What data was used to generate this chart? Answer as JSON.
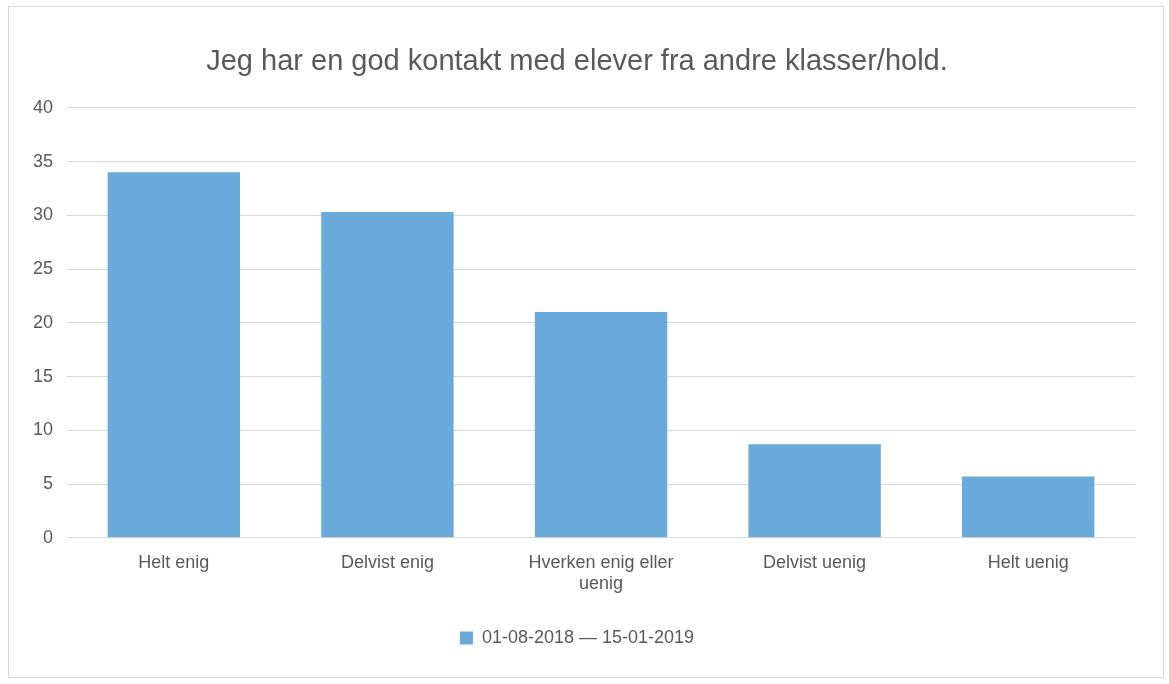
{
  "chart_data": {
    "type": "bar",
    "title": "Jeg har en god kontakt med elever fra andre klasser/hold.",
    "categories": [
      "Helt enig",
      "Delvist enig",
      "Hverken enig eller uenig",
      "Delvist uenig",
      "Helt uenig"
    ],
    "series": [
      {
        "name": "01-08-2018 — 15-01-2019",
        "color": "#6aaadb",
        "values": [
          34,
          30.3,
          21,
          8.7,
          5.7
        ]
      }
    ],
    "ylim": [
      0,
      40
    ],
    "yticks": [
      0,
      5,
      10,
      15,
      20,
      25,
      30,
      35,
      40
    ],
    "grid": "y",
    "legend": "bottom"
  }
}
